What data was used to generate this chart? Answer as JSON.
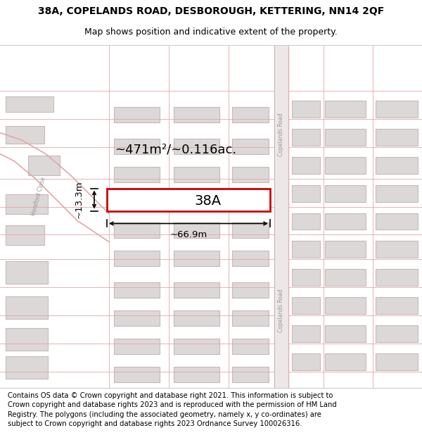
{
  "title_line1": "38A, COPELANDS ROAD, DESBOROUGH, KETTERING, NN14 2QF",
  "title_line2": "Map shows position and indicative extent of the property.",
  "footer_text": "Contains OS data © Crown copyright and database right 2021. This information is subject to Crown copyright and database rights 2023 and is reproduced with the permission of HM Land Registry. The polygons (including the associated geometry, namely x, y co-ordinates) are subject to Crown copyright and database rights 2023 Ordnance Survey 100026316.",
  "map_bg": "#faf8f8",
  "plot_fill": "#ffffff",
  "plot_stroke": "#cc0000",
  "road_line_color": "#d4a0a0",
  "building_fill": "#ddd8d8",
  "building_edge": "#c8b8b8",
  "line_color": "#e0a8a8",
  "road_fill": "#f0e8e8",
  "area_label": "~471m²/~0.116ac.",
  "width_label": "~66.9m",
  "height_label": "~13.3m",
  "plot_label": "38A",
  "road_label": "Copelands Road",
  "street_label": "Hereford Close",
  "title_fontsize": 10,
  "subtitle_fontsize": 9,
  "footer_fontsize": 7.2,
  "area_fontsize": 13,
  "plot_label_fontsize": 14,
  "dim_fontsize": 9.5
}
